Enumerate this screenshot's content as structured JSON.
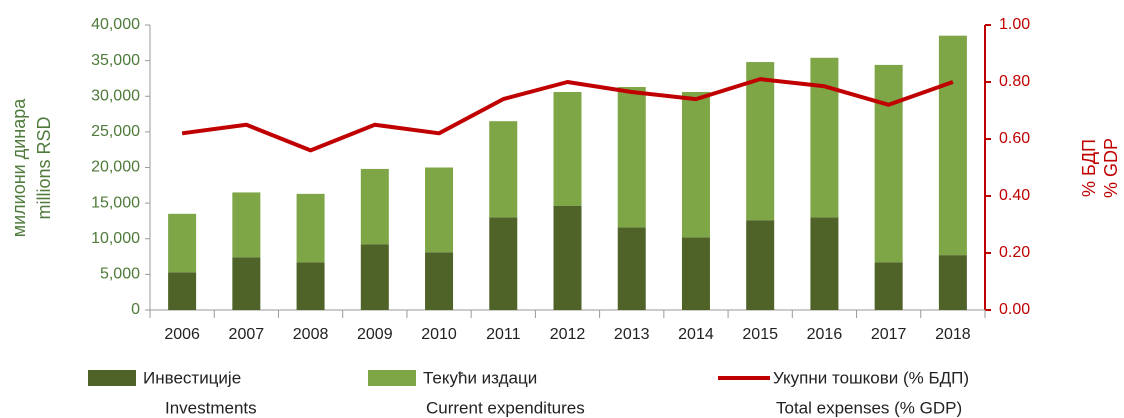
{
  "chart_data": {
    "type": "bar+line",
    "categories": [
      "2006",
      "2007",
      "2008",
      "2009",
      "2010",
      "2011",
      "2012",
      "2013",
      "2014",
      "2015",
      "2016",
      "2017",
      "2018"
    ],
    "series": [
      {
        "name": "Инвестиције",
        "name_en": "Investments",
        "color": "#4f6228",
        "stacked": true,
        "values": [
          5300,
          7400,
          6700,
          9200,
          8100,
          13000,
          14600,
          11600,
          10200,
          12600,
          13000,
          6700,
          7700
        ]
      },
      {
        "name": "Текући издаци",
        "name_en": "Current expenditures",
        "color": "#7ea546",
        "stacked": true,
        "values": [
          8200,
          9100,
          9600,
          10600,
          11900,
          13500,
          16000,
          19700,
          20400,
          22200,
          22400,
          27700,
          30800
        ]
      },
      {
        "name": "Укупни тошкови (% БДП)",
        "name_en": "Total expenses (% GDP)",
        "color": "#c00000",
        "axis": "y2",
        "line": true,
        "values": [
          0.62,
          0.65,
          0.56,
          0.65,
          0.62,
          0.74,
          0.8,
          0.765,
          0.74,
          0.81,
          0.785,
          0.72,
          0.8
        ]
      }
    ],
    "ylabel": [
      "милиони динара",
      "millions RSD"
    ],
    "y2label": [
      "% БДП",
      "% GDP"
    ],
    "ylim": [
      0,
      40000
    ],
    "yticks": [
      0,
      {
        "value": 5000,
        "label": "5,000"
      },
      {
        "value": 10000,
        "label": "10,000"
      },
      {
        "value": 15000,
        "label": "15,000"
      },
      {
        "value": 20000,
        "label": "20,000"
      },
      {
        "value": 25000,
        "label": "25,000"
      },
      {
        "value": 30000,
        "label": "30,000"
      },
      {
        "value": 35000,
        "label": "35,000"
      },
      {
        "value": 40000,
        "label": "40,000"
      }
    ],
    "y2lim": [
      0,
      1
    ],
    "y2ticks": [
      {
        "value": 0,
        "label": "0.00"
      },
      {
        "value": 0.2,
        "label": "0.20"
      },
      {
        "value": 0.4,
        "label": "0.40"
      },
      {
        "value": 0.6,
        "label": "0.60"
      },
      {
        "value": 0.8,
        "label": "0.80"
      },
      {
        "value": 1,
        "label": "1.00"
      }
    ],
    "grid": false
  }
}
